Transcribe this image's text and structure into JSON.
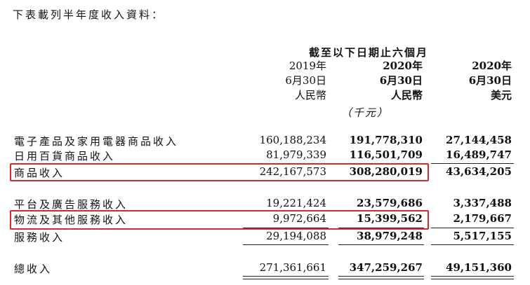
{
  "intro": "下表載列半年度收入資料：",
  "period_header": "截至以下日期止六個月",
  "columns": [
    {
      "year": "2019年",
      "date": "6月30日",
      "currency": "人民幣",
      "unit": ""
    },
    {
      "year": "2020年",
      "date": "6月30日",
      "currency": "人民幣",
      "unit": "（千元）"
    },
    {
      "year": "2020年",
      "date": "6月30日",
      "currency": "美元",
      "unit": ""
    }
  ],
  "rows": [
    {
      "label": "電子產品及家用電器商品收入",
      "values": [
        "160,188,234",
        "191,778,310",
        "27,144,458"
      ]
    },
    {
      "label": "日用百貨商品收入",
      "values": [
        "81,979,339",
        "116,501,709",
        "16,489,747"
      ]
    },
    {
      "label": "商品收入",
      "values": [
        "242,167,573",
        "308,280,019",
        "43,634,205"
      ]
    },
    {
      "label": "平台及廣告服務收入",
      "values": [
        "19,221,424",
        "23,579,686",
        "3,337,488"
      ]
    },
    {
      "label": "物流及其他服務收入",
      "values": [
        "9,972,664",
        "15,399,562",
        "2,179,667"
      ]
    },
    {
      "label": "服務收入",
      "values": [
        "29,194,088",
        "38,979,248",
        "5,517,155"
      ]
    },
    {
      "label": "總收入",
      "values": [
        "271,361,661",
        "347,259,267",
        "49,151,360"
      ]
    }
  ],
  "highlight_color": "#e0252b"
}
